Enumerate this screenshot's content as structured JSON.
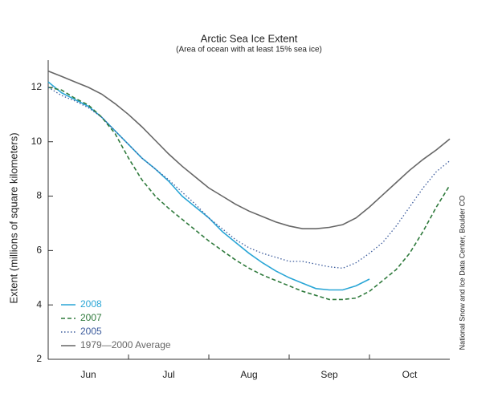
{
  "chart_data": {
    "type": "line",
    "title": "Arctic Sea Ice Extent",
    "subtitle": "(Area of ocean with at least 15% sea ice)",
    "y_label": "Extent (millions of square kilometers)",
    "annotation": "National Snow and Ice Data Center, Boulder CO",
    "categories": [
      null,
      null,
      null,
      "Jun",
      null,
      null,
      null,
      null,
      null,
      "Jul",
      null,
      null,
      null,
      null,
      null,
      "Aug",
      null,
      null,
      null,
      null,
      null,
      "Sep",
      null,
      null,
      null,
      null,
      null,
      "Oct",
      null,
      null,
      null
    ],
    "ylim": [
      2,
      13
    ],
    "yticks": [
      2,
      4,
      6,
      8,
      10,
      12
    ],
    "legend": "bottom-left",
    "series": [
      {
        "name": "2008",
        "color": "#2aa6d6",
        "style": "solid",
        "values": [
          12.2,
          11.8,
          11.55,
          11.3,
          10.9,
          10.4,
          9.9,
          9.4,
          9.0,
          8.55,
          8.0,
          7.6,
          7.2,
          6.7,
          6.3,
          5.9,
          5.55,
          5.25,
          5.0,
          4.8,
          4.6,
          4.55,
          4.55,
          4.7,
          4.95,
          null,
          null,
          null,
          null,
          null,
          null
        ]
      },
      {
        "name": "2007",
        "color": "#2f7a3c",
        "style": "dashed",
        "values": [
          12.0,
          11.9,
          11.6,
          11.35,
          10.9,
          10.3,
          9.4,
          8.6,
          8.0,
          7.55,
          7.15,
          6.75,
          6.35,
          6.0,
          5.65,
          5.35,
          5.1,
          4.9,
          4.7,
          4.5,
          4.35,
          4.2,
          4.2,
          4.25,
          4.5,
          4.9,
          5.3,
          5.9,
          6.7,
          7.6,
          8.4
        ]
      },
      {
        "name": "2005",
        "color": "#3b5b9c",
        "style": "dotted",
        "values": [
          12.0,
          11.7,
          11.5,
          11.25,
          10.9,
          10.4,
          9.9,
          9.4,
          9.0,
          8.6,
          8.15,
          7.7,
          7.2,
          6.8,
          6.4,
          6.1,
          5.9,
          5.75,
          5.6,
          5.6,
          5.5,
          5.4,
          5.35,
          5.55,
          5.9,
          6.3,
          6.9,
          7.6,
          8.3,
          8.9,
          9.3
        ]
      },
      {
        "name": "1979—2000 Average",
        "color": "#666666",
        "style": "solid",
        "values": [
          12.6,
          12.4,
          12.2,
          12.0,
          11.75,
          11.4,
          11.0,
          10.55,
          10.05,
          9.55,
          9.1,
          8.7,
          8.3,
          8.0,
          7.7,
          7.45,
          7.25,
          7.05,
          6.9,
          6.8,
          6.8,
          6.85,
          6.95,
          7.2,
          7.6,
          8.05,
          8.5,
          8.95,
          9.35,
          9.7,
          10.1
        ]
      }
    ]
  }
}
